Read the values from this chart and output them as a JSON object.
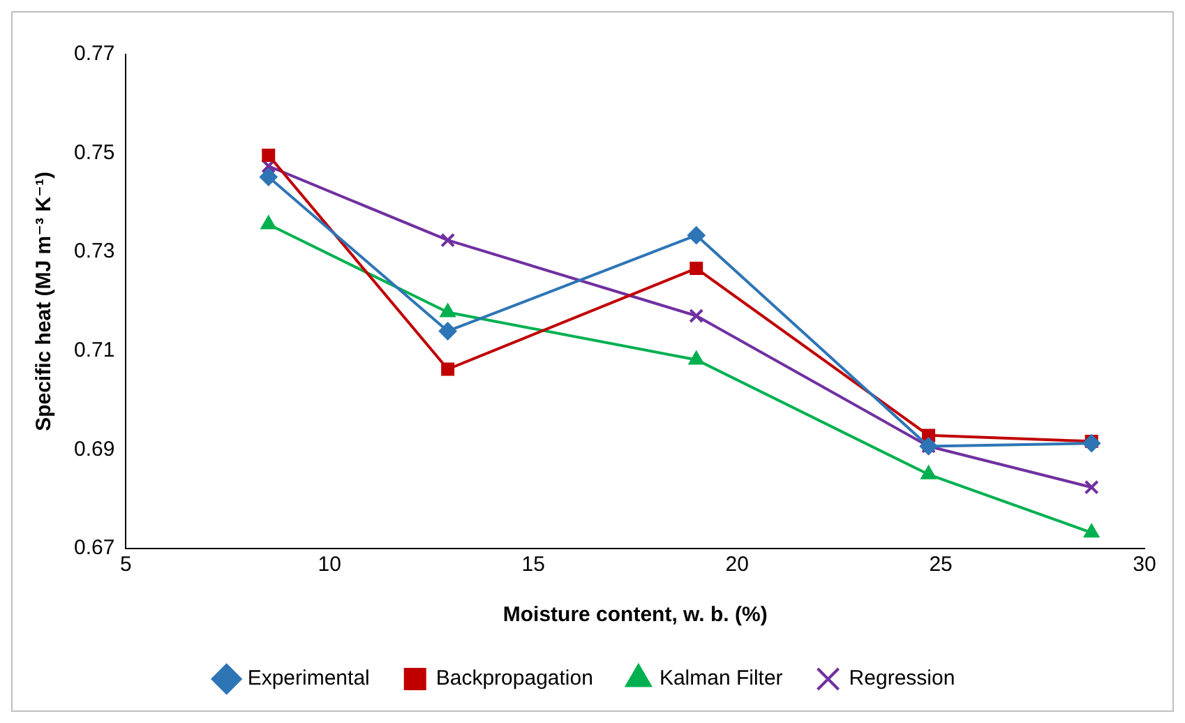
{
  "chart_data": {
    "type": "line",
    "xlabel": "Moisture content, w. b. (%)",
    "ylabel": "Specific heat (MJ m⁻³ K⁻¹)",
    "x": [
      8.5,
      12.9,
      19.0,
      24.7,
      28.7
    ],
    "series": [
      {
        "name": "Experimental",
        "color": "#2e75b6",
        "marker": "diamond",
        "values": [
          0.7452,
          0.714,
          0.7334,
          0.6907,
          0.6913
        ]
      },
      {
        "name": "Backpropagation",
        "color": "#c00000",
        "marker": "square",
        "values": [
          0.7496,
          0.7063,
          0.7267,
          0.6929,
          0.6917
        ]
      },
      {
        "name": "Kalman Filter",
        "color": "#00b050",
        "marker": "triangle",
        "values": [
          0.7356,
          0.7178,
          0.7082,
          0.685,
          0.6732
        ]
      },
      {
        "name": "Regression",
        "color": "#7030a0",
        "marker": "cross",
        "values": [
          0.7474,
          0.7324,
          0.7171,
          0.6907,
          0.6824
        ]
      }
    ],
    "xlim": [
      5,
      30
    ],
    "xticks": [
      5,
      10,
      15,
      20,
      25,
      30
    ],
    "ylim": [
      0.67,
      0.77
    ],
    "yticks": [
      0.67,
      0.69,
      0.71,
      0.73,
      0.75,
      0.77
    ],
    "grid": false,
    "legend": "bottom",
    "line_style": "solid"
  }
}
